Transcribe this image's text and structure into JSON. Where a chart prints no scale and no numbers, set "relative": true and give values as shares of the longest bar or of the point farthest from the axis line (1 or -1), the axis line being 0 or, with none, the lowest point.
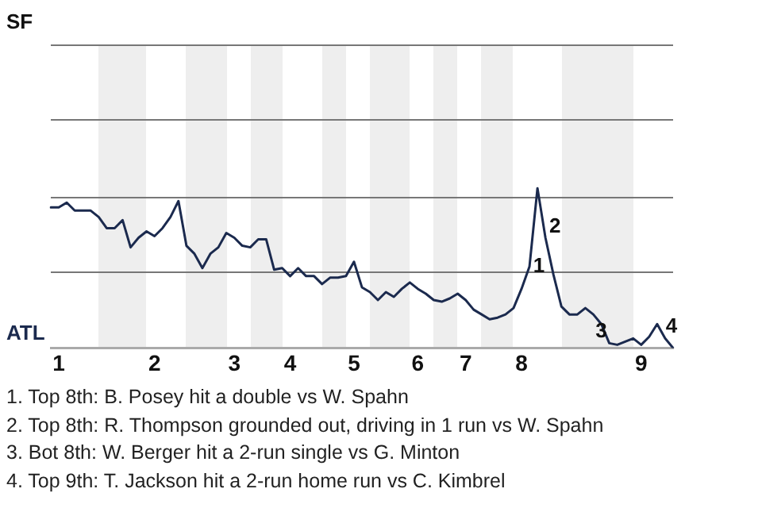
{
  "chart_data": {
    "type": "line",
    "relative": true,
    "categories": [
      null,
      "1",
      null,
      null,
      null,
      null,
      null,
      null,
      null,
      null,
      null,
      null,
      null,
      "2",
      null,
      null,
      null,
      null,
      null,
      null,
      null,
      null,
      null,
      "3",
      null,
      null,
      null,
      null,
      null,
      null,
      "4",
      null,
      null,
      null,
      null,
      null,
      null,
      null,
      "5",
      null,
      null,
      null,
      null,
      null,
      null,
      null,
      "6",
      null,
      null,
      null,
      null,
      null,
      "7",
      null,
      null,
      null,
      null,
      null,
      null,
      "8",
      null,
      null,
      null,
      null,
      null,
      null,
      null,
      null,
      null,
      null,
      null,
      null,
      null,
      null,
      "9",
      null,
      null,
      null,
      null
    ],
    "series": [
      {
        "color": "#1b2a4e",
        "values": [
          0.88,
          0.88,
          0.91,
          0.86,
          0.86,
          0.86,
          0.82,
          0.75,
          0.75,
          0.8,
          0.63,
          0.69,
          0.73,
          0.7,
          0.75,
          0.82,
          0.92,
          0.64,
          0.59,
          0.5,
          0.59,
          0.63,
          0.72,
          0.69,
          0.64,
          0.63,
          0.68,
          0.68,
          0.49,
          0.5,
          0.45,
          0.5,
          0.45,
          0.45,
          0.4,
          0.44,
          0.44,
          0.45,
          0.54,
          0.38,
          0.35,
          0.3,
          0.35,
          0.32,
          0.37,
          0.41,
          0.37,
          0.34,
          0.3,
          0.29,
          0.31,
          0.34,
          0.3,
          0.24,
          0.21,
          0.18,
          0.19,
          0.21,
          0.25,
          0.37,
          0.51,
          1,
          0.69,
          0.46,
          0.26,
          0.21,
          0.21,
          0.25,
          0.21,
          0.15,
          0.03,
          0.02,
          0.04,
          0.06,
          0.02,
          0.07,
          0.15,
          0.06,
          0
        ]
      }
    ],
    "legend": false,
    "ref_lines": [
      {
        "axis": "y",
        "value": 0.48,
        "color": "#777777"
      },
      {
        "axis": "y",
        "value": 0.95,
        "color": "#777777"
      },
      {
        "axis": "y",
        "value": 1.43,
        "color": "#777777"
      },
      {
        "axis": "y",
        "value": 1.9,
        "color": "#777777"
      }
    ],
    "marker": "none",
    "annotations": [
      "SF",
      "ATL",
      "1",
      "2",
      "3",
      "4",
      "1. Top 8th: B. Posey hit a double vs W. Spahn",
      "2. Top 8th: R. Thompson grounded out, driving in 1 run vs W. Spahn",
      "3. Bot 8th: W. Berger hit a 2-run single vs G. Minton",
      "4. Top 9th: T. Jackson hit a 2-run home run vs C. Kimbrel"
    ]
  }
}
